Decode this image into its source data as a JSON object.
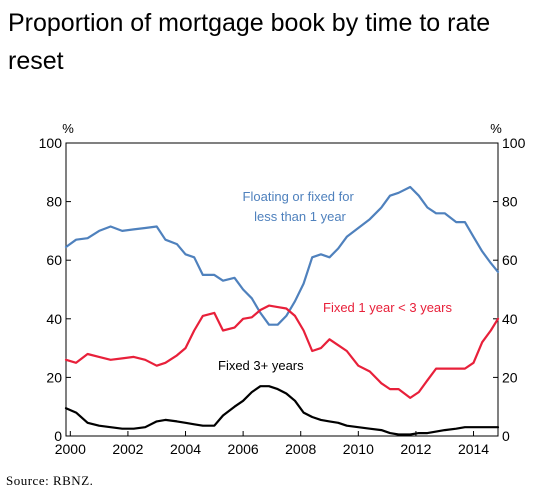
{
  "title": "Proportion of mortgage book by time to rate reset",
  "source": "Source: RBNZ.",
  "chart_data": {
    "type": "line",
    "title": "Proportion of mortgage book by time to rate reset",
    "ylabel_left": "%",
    "ylabel_right": "%",
    "ylim": [
      0,
      100
    ],
    "yticks": [
      0,
      20,
      40,
      60,
      80,
      100
    ],
    "xlim": [
      1999.85,
      2014.85
    ],
    "xticks": [
      2000,
      2002,
      2004,
      2006,
      2008,
      2010,
      2012,
      2014
    ],
    "xtick_labels": [
      "2000",
      "2002",
      "2004",
      "2006",
      "2008",
      "2010",
      "2012",
      "2014"
    ],
    "grid": false,
    "series": [
      {
        "name": "Floating or fixed for less than 1 year",
        "label_lines": [
          "Floating or fixed for",
          "less than 1 year"
        ],
        "color": "#4f81bd",
        "x": [
          1999.85,
          2000.2,
          2000.6,
          2001.0,
          2001.4,
          2001.8,
          2002.2,
          2002.6,
          2003.0,
          2003.3,
          2003.7,
          2004.0,
          2004.3,
          2004.6,
          2005.0,
          2005.3,
          2005.7,
          2006.0,
          2006.3,
          2006.6,
          2006.9,
          2007.2,
          2007.5,
          2007.8,
          2008.1,
          2008.4,
          2008.7,
          2009.0,
          2009.3,
          2009.6,
          2010.0,
          2010.4,
          2010.8,
          2011.1,
          2011.4,
          2011.8,
          2012.1,
          2012.4,
          2012.7,
          2013.0,
          2013.4,
          2013.7,
          2014.0,
          2014.3,
          2014.6,
          2014.85
        ],
        "y": [
          64.5,
          67,
          67.5,
          70,
          71.5,
          70,
          70.5,
          71,
          71.5,
          67,
          65.5,
          62,
          61,
          55,
          55,
          53,
          54,
          50,
          47,
          42,
          38,
          38,
          41,
          46,
          52,
          61,
          62,
          61,
          64,
          68,
          71,
          74,
          78,
          82,
          83,
          85,
          82,
          78,
          76,
          76,
          73,
          73,
          68,
          63,
          59,
          56
        ]
      },
      {
        "name": "Fixed 1 year < 3 years",
        "label_lines": [
          "Fixed 1 year < 3 years"
        ],
        "color": "#e8203a",
        "x": [
          1999.85,
          2000.2,
          2000.6,
          2001.0,
          2001.4,
          2001.8,
          2002.2,
          2002.6,
          2003.0,
          2003.3,
          2003.7,
          2004.0,
          2004.3,
          2004.6,
          2005.0,
          2005.3,
          2005.7,
          2006.0,
          2006.3,
          2006.6,
          2006.9,
          2007.2,
          2007.5,
          2007.8,
          2008.1,
          2008.4,
          2008.7,
          2009.0,
          2009.3,
          2009.6,
          2010.0,
          2010.4,
          2010.8,
          2011.1,
          2011.4,
          2011.8,
          2012.1,
          2012.4,
          2012.7,
          2013.0,
          2013.4,
          2013.7,
          2014.0,
          2014.3,
          2014.6,
          2014.85
        ],
        "y": [
          26,
          25,
          28,
          27,
          26,
          26.5,
          27,
          26,
          24,
          25,
          27.5,
          30,
          36,
          41,
          42,
          36,
          37,
          40,
          40.5,
          43,
          44.5,
          44,
          43.5,
          41,
          36,
          29,
          30,
          33,
          31,
          29,
          24,
          22,
          18,
          16,
          16,
          13,
          15,
          19,
          23,
          23,
          23,
          23,
          25,
          32,
          36,
          40
        ]
      },
      {
        "name": "Fixed 3+ years",
        "label_lines": [
          "Fixed 3+ years"
        ],
        "color": "#000000",
        "x": [
          1999.85,
          2000.2,
          2000.6,
          2001.0,
          2001.4,
          2001.8,
          2002.2,
          2002.6,
          2003.0,
          2003.3,
          2003.7,
          2004.0,
          2004.3,
          2004.6,
          2005.0,
          2005.3,
          2005.7,
          2006.0,
          2006.3,
          2006.6,
          2006.9,
          2007.2,
          2007.5,
          2007.8,
          2008.1,
          2008.4,
          2008.7,
          2009.0,
          2009.3,
          2009.6,
          2010.0,
          2010.4,
          2010.8,
          2011.1,
          2011.4,
          2011.8,
          2012.1,
          2012.4,
          2012.7,
          2013.0,
          2013.4,
          2013.7,
          2014.0,
          2014.3,
          2014.6,
          2014.85
        ],
        "y": [
          9.5,
          8,
          4.5,
          3.5,
          3,
          2.5,
          2.5,
          3,
          5,
          5.5,
          5,
          4.5,
          4,
          3.5,
          3.5,
          7,
          10,
          12,
          15,
          17,
          17,
          16,
          14.5,
          12,
          8,
          6.5,
          5.5,
          5,
          4.5,
          3.5,
          3,
          2.5,
          2,
          1,
          0.5,
          0.5,
          1,
          1,
          1.5,
          2,
          2.5,
          3,
          3,
          3,
          3,
          3
        ]
      }
    ]
  }
}
